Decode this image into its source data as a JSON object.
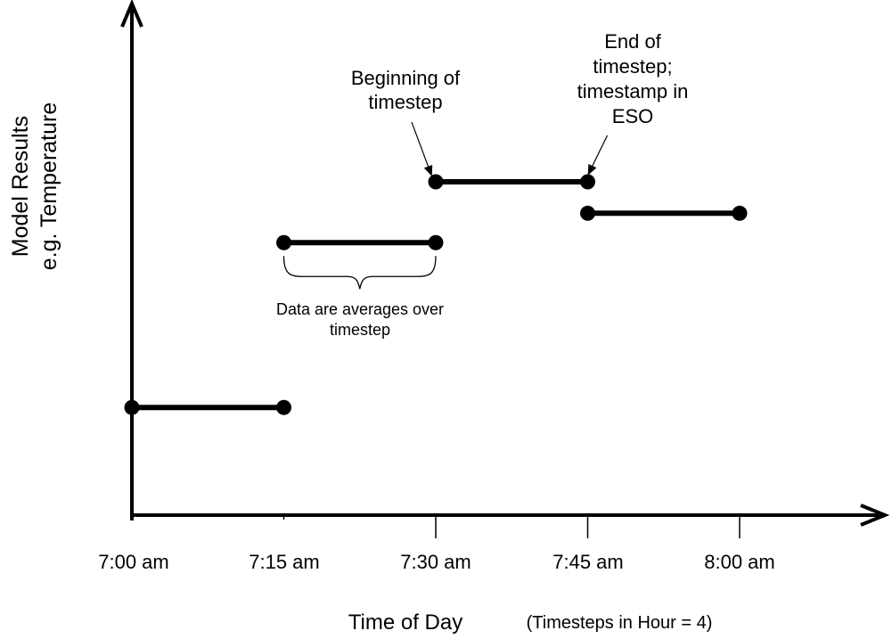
{
  "figure": {
    "background": "#ffffff",
    "ink_color": "#000000"
  },
  "chart_data": {
    "type": "line",
    "subtype": "step-segments-with-endpoint-dots",
    "title": "",
    "xlabel": "Time of Day",
    "xlabel_note": "(Timesteps in Hour = 4)",
    "ylabel": "Model Results\ne.g. Temperature",
    "x_ticks": [
      "7:00 am",
      "7:15 am",
      "7:30 am",
      "7:45 am",
      "8:00 am"
    ],
    "y_axis": {
      "scale_shown": false,
      "range_norm": [
        0,
        1
      ]
    },
    "segments": [
      {
        "start_tick": 0,
        "end_tick": 1,
        "from": "7:00 am",
        "to": "7:15 am",
        "value_norm": 0.209
      },
      {
        "start_tick": 1,
        "end_tick": 2,
        "from": "7:15 am",
        "to": "7:30 am",
        "value_norm": 0.529
      },
      {
        "start_tick": 2,
        "end_tick": 3,
        "from": "7:30 am",
        "to": "7:45 am",
        "value_norm": 0.647
      },
      {
        "start_tick": 3,
        "end_tick": 4,
        "from": "7:45 am",
        "to": "8:00 am",
        "value_norm": 0.586
      }
    ],
    "annotations": [
      {
        "id": "beginning-of-timestep",
        "text": "Beginning of\ntimestep",
        "target": "start dot of 7:30-7:45 segment",
        "marker": "arrow"
      },
      {
        "id": "end-of-timestep",
        "text": "End of\ntimestep;\ntimestamp in\nESO",
        "target": "end dot of 7:30-7:45 segment",
        "marker": "arrow"
      },
      {
        "id": "averages-over-timestep",
        "text": "Data are averages over\ntimestep",
        "target": "7:15-7:30 segment",
        "marker": "curly-brace"
      }
    ],
    "grid": false,
    "legend": false
  }
}
